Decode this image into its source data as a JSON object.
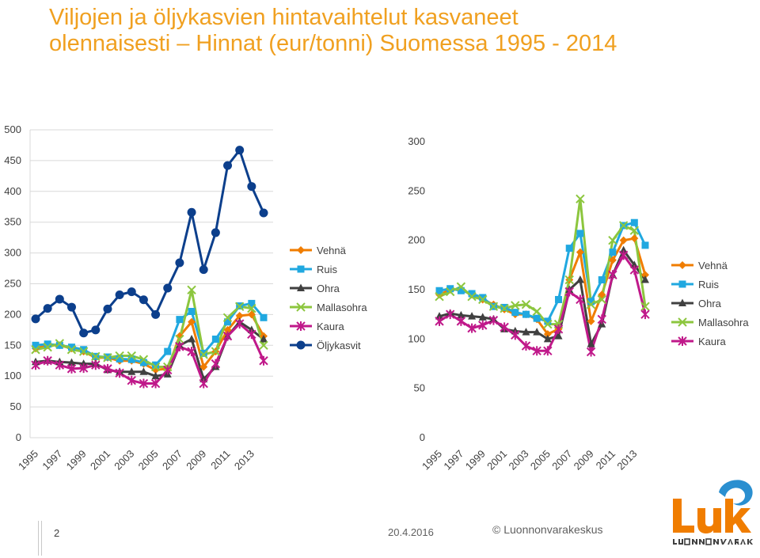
{
  "title": {
    "line1": "Viljojen ja öljykasvien hintavaihtelut kasvaneet",
    "line2": "olennaisesti – Hinnat (eur/tonni) Suomessa 1995 - 2014"
  },
  "footer": {
    "page_number": "2",
    "date": "20.4.2016",
    "copyright": "© Luonnonvarakeskus"
  },
  "logo": {
    "name": "Luke",
    "subtitle": "LUONNONVARAKESKUS",
    "color": "#f07d00",
    "swirl_color": "#2a8fd0"
  },
  "colors": {
    "Vehnä": "#f07d00",
    "Ruis": "#20a8e0",
    "Ohra": "#404040",
    "Mallasohra": "#8cc63e",
    "Kaura": "#c0198a",
    "Öljykasvit": "#0c3f8c"
  },
  "chart_data": [
    {
      "type": "line",
      "title": "",
      "xlabel": "",
      "ylabel": "",
      "ylim": [
        0,
        500
      ],
      "yticks": [
        0,
        50,
        100,
        150,
        200,
        250,
        300,
        350,
        400,
        450,
        500
      ],
      "xtick_labels": [
        "1995",
        "1997",
        "1999",
        "2001",
        "2003",
        "2005",
        "2007",
        "2009",
        "2011",
        "2013"
      ],
      "x": [
        1995,
        1996,
        1997,
        1998,
        1999,
        2000,
        2001,
        2002,
        2003,
        2004,
        2005,
        2006,
        2007,
        2008,
        2009,
        2010,
        2011,
        2012,
        2013,
        2014
      ],
      "grid": true,
      "legend": "right",
      "series": [
        {
          "name": "Vehnä",
          "marker": "diamond",
          "values": [
            145,
            150,
            150,
            145,
            140,
            130,
            130,
            125,
            125,
            120,
            110,
            112,
            165,
            188,
            115,
            140,
            175,
            198,
            200,
            165
          ]
        },
        {
          "name": "Ruis",
          "marker": "square",
          "values": [
            150,
            152,
            150,
            147,
            143,
            132,
            131,
            128,
            127,
            122,
            118,
            140,
            192,
            205,
            137,
            160,
            188,
            214,
            218,
            195
          ]
        },
        {
          "name": "Ohra",
          "marker": "triangle",
          "values": [
            123,
            125,
            123,
            122,
            120,
            120,
            110,
            107,
            107,
            107,
            100,
            103,
            150,
            160,
            95,
            115,
            165,
            188,
            175,
            160
          ]
        },
        {
          "name": "Mallasohra",
          "marker": "x",
          "values": [
            143,
            147,
            153,
            143,
            140,
            132,
            130,
            133,
            133,
            127,
            115,
            115,
            160,
            240,
            135,
            140,
            195,
            213,
            210,
            150
          ]
        },
        {
          "name": "Kaura",
          "marker": "star",
          "values": [
            118,
            125,
            118,
            112,
            113,
            118,
            112,
            105,
            93,
            88,
            88,
            110,
            148,
            140,
            88,
            120,
            165,
            185,
            168,
            125
          ]
        },
        {
          "name": "Öljykasvit",
          "marker": "circle",
          "values": [
            193,
            210,
            225,
            212,
            170,
            175,
            209,
            232,
            237,
            224,
            200,
            243,
            284,
            366,
            273,
            333,
            442,
            467,
            408,
            365
          ]
        }
      ]
    },
    {
      "type": "line",
      "title": "",
      "xlabel": "",
      "ylabel": "",
      "ylim": [
        0,
        300
      ],
      "yticks": [
        0,
        50,
        100,
        150,
        200,
        250,
        300
      ],
      "xtick_labels": [
        "1995",
        "1997",
        "1999",
        "2001",
        "2003",
        "2005",
        "2007",
        "2009",
        "2011",
        "2013"
      ],
      "x": [
        1995,
        1996,
        1997,
        1998,
        1999,
        2000,
        2001,
        2002,
        2003,
        2004,
        2005,
        2006,
        2007,
        2008,
        2009,
        2010,
        2011,
        2012,
        2013,
        2014
      ],
      "grid": false,
      "legend": "right",
      "series": [
        {
          "name": "Vehnä",
          "marker": "diamond",
          "values": [
            145,
            150,
            150,
            145,
            140,
            135,
            130,
            125,
            125,
            120,
            105,
            110,
            160,
            188,
            118,
            145,
            180,
            200,
            202,
            165
          ]
        },
        {
          "name": "Ruis",
          "marker": "square",
          "values": [
            149,
            151,
            149,
            146,
            142,
            133,
            132,
            127,
            125,
            121,
            118,
            140,
            192,
            207,
            138,
            160,
            188,
            215,
            218,
            195
          ]
        },
        {
          "name": "Ohra",
          "marker": "triangle",
          "values": [
            123,
            126,
            124,
            123,
            122,
            120,
            110,
            108,
            107,
            107,
            100,
            103,
            150,
            160,
            95,
            115,
            165,
            190,
            175,
            160
          ]
        },
        {
          "name": "Mallasohra",
          "marker": "x",
          "values": [
            143,
            148,
            153,
            143,
            140,
            133,
            131,
            134,
            135,
            128,
            115,
            115,
            160,
            242,
            135,
            140,
            200,
            215,
            210,
            133
          ]
        },
        {
          "name": "Kaura",
          "marker": "star",
          "values": [
            118,
            125,
            118,
            111,
            114,
            119,
            112,
            104,
            93,
            88,
            88,
            110,
            148,
            140,
            87,
            120,
            165,
            185,
            170,
            125
          ]
        }
      ]
    }
  ]
}
